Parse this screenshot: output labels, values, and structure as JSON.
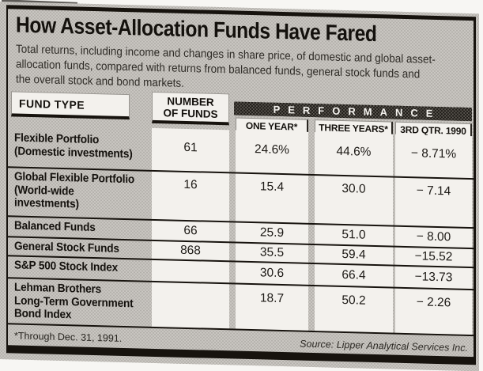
{
  "header": {
    "title": "How Asset-Allocation Funds Have Fared",
    "subtitle": "Total returns, including income and changes in share price, of domestic and global asset-\nallocation funds, compared with returns from balanced funds, general stock funds and\nthe overall stock and bond markets."
  },
  "table": {
    "columns": {
      "fund_type": "FUND TYPE",
      "number_of_funds": "NUMBER\nOF FUNDS",
      "performance": "PERFORMANCE",
      "one_year": "ONE YEAR*",
      "three_years": "THREE YEARS*",
      "third_qtr_1990": "3RD QTR. 1990"
    },
    "rows": [
      {
        "name": "Flexible Portfolio\n(Domestic investments)",
        "number_of_funds": "61",
        "one_year": "24.6%",
        "three_years": "44.6%",
        "third_qtr_1990": "− 8.71%"
      },
      {
        "name": "Global Flexible Portfolio\n(World-wide\ninvestments)",
        "number_of_funds": "16",
        "one_year": "15.4",
        "three_years": "30.0",
        "third_qtr_1990": "− 7.14"
      },
      {
        "name": "Balanced Funds",
        "number_of_funds": "66",
        "one_year": "25.9",
        "three_years": "51.0",
        "third_qtr_1990": "− 8.00"
      },
      {
        "name": "General Stock Funds",
        "number_of_funds": "868",
        "one_year": "35.5",
        "three_years": "59.4",
        "third_qtr_1990": "−15.52"
      },
      {
        "name": "S&P 500 Stock Index",
        "number_of_funds": "",
        "one_year": "30.6",
        "three_years": "66.4",
        "third_qtr_1990": "−13.73"
      },
      {
        "name": "Lehman Brothers\nLong-Term Government\nBond Index",
        "number_of_funds": "",
        "one_year": "18.7",
        "three_years": "50.2",
        "third_qtr_1990": "− 2.26"
      }
    ]
  },
  "footer": {
    "footnote": "*Through Dec. 31, 1991.",
    "source": "Source: Lipper Analytical Services Inc."
  },
  "colors": {
    "ink": "#17130e",
    "paper": "#ccc9c4",
    "cell_white": "#f3f1ed",
    "performance_band": "#3e3b37"
  }
}
